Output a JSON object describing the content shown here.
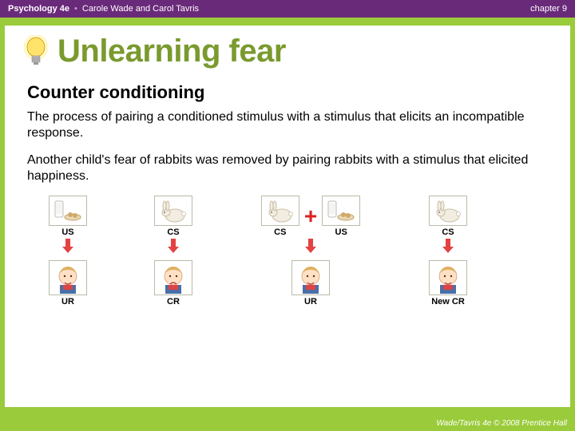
{
  "header": {
    "book": "Psychology 4e",
    "authors": "Carole Wade and Carol Tavris",
    "chapter": "chapter 9"
  },
  "title": "Unlearning fear",
  "subtitle": "Counter conditioning",
  "para1": "The process of pairing a conditioned stimulus with a stimulus that elicits an incompatible response.",
  "para2": "Another child's fear of rabbits was removed by pairing rabbits with a stimulus that elicited happiness.",
  "panels": [
    {
      "stimuli": [
        {
          "icon": "food",
          "label": "US"
        }
      ],
      "response": {
        "face": "happy",
        "label": "UR"
      },
      "arrow": "#d22"
    },
    {
      "stimuli": [
        {
          "icon": "rabbit",
          "label": "CS"
        }
      ],
      "response": {
        "face": "sad",
        "label": "CR"
      },
      "arrow": "#d22"
    },
    {
      "stimuli": [
        {
          "icon": "rabbit",
          "label": "CS"
        },
        {
          "icon": "food",
          "label": "US"
        }
      ],
      "plus": "+",
      "response": {
        "face": "happy",
        "label": "UR"
      },
      "arrow": "#d22"
    },
    {
      "stimuli": [
        {
          "icon": "rabbit",
          "label": "CS"
        }
      ],
      "response": {
        "face": "happy",
        "label": "New CR"
      },
      "arrow": "#d22"
    }
  ],
  "footer": "Wade/Tavris 4e © 2008 Prentice Hall",
  "colors": {
    "green_frame": "#9acb3b",
    "purple_header": "#6a2a7a",
    "title_green": "#7a9a2e",
    "arrow_red": "#d22",
    "box_border": "#b8bca8"
  }
}
